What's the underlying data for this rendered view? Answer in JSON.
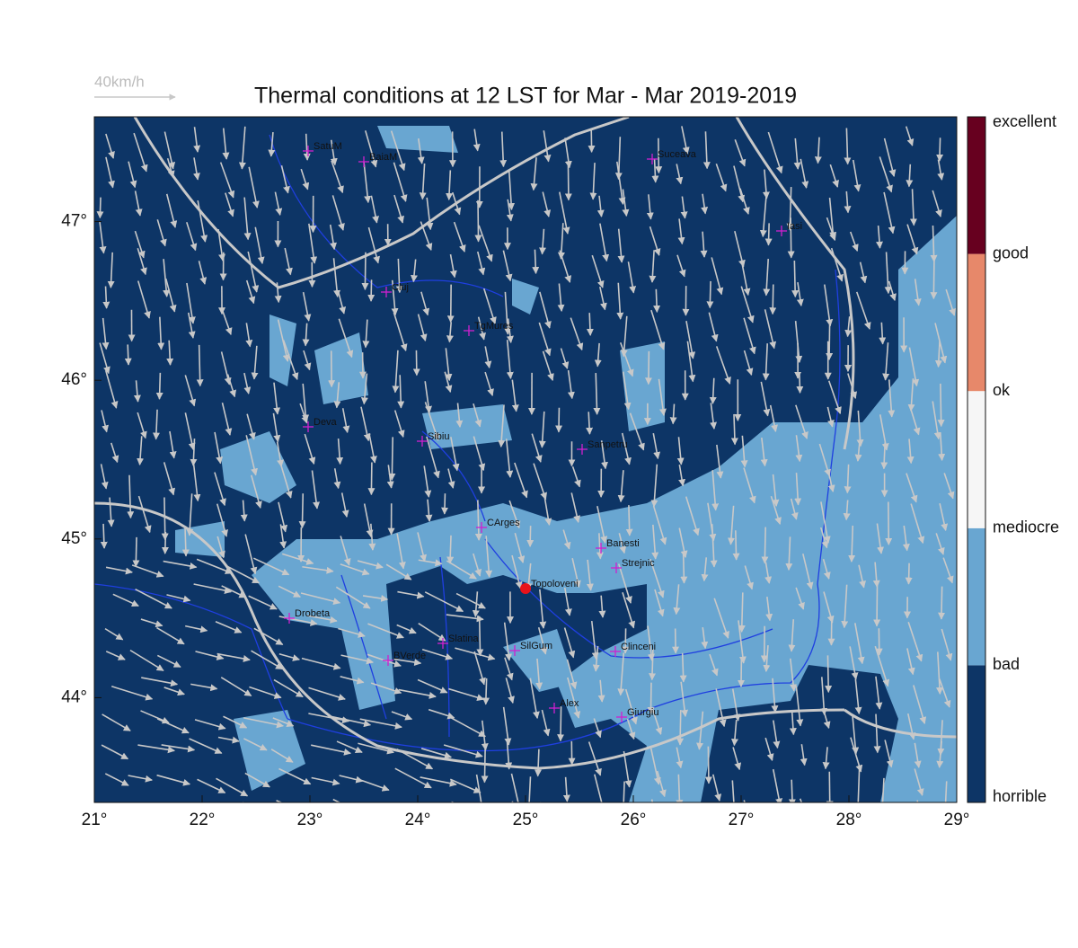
{
  "title": "Thermal conditions at 12 LST for Mar - Mar  2019-2019",
  "reference_vector": "40km/h",
  "map": {
    "xlim": [
      21,
      29
    ],
    "ylim": [
      43.34,
      47.66
    ],
    "xticks": [
      {
        "value": 21,
        "label": "21°"
      },
      {
        "value": 22,
        "label": "22°"
      },
      {
        "value": 23,
        "label": "23°"
      },
      {
        "value": 24,
        "label": "24°"
      },
      {
        "value": 25,
        "label": "25°"
      },
      {
        "value": 26,
        "label": "26°"
      },
      {
        "value": 27,
        "label": "27°"
      },
      {
        "value": 28,
        "label": "28°"
      },
      {
        "value": 29,
        "label": "29°"
      }
    ],
    "yticks": [
      {
        "value": 44,
        "label": "44°"
      },
      {
        "value": 45,
        "label": "45°"
      },
      {
        "value": 46,
        "label": "46°"
      },
      {
        "value": 47,
        "label": "47°"
      }
    ],
    "cities": [
      "SatuM",
      "BaiaM",
      "Suceava",
      "Iasi",
      "Cluj",
      "TgMures",
      "Deva",
      "Sibiu",
      "Sanpetru",
      "CArges",
      "Banesti",
      "Strejnic",
      "Topoloveni",
      "Drobeta",
      "Slatina",
      "SilGum",
      "Clinceni",
      "BVerde",
      "Alex",
      "Giurgiu"
    ]
  },
  "colorbar": {
    "labels": [
      "horrible",
      "bad",
      "mediocre",
      "ok",
      "good",
      "excellent"
    ],
    "colors": [
      "#0d3566",
      "#69a6d1",
      "#f6f6f6",
      "#e7886a",
      "#67001f"
    ]
  }
}
